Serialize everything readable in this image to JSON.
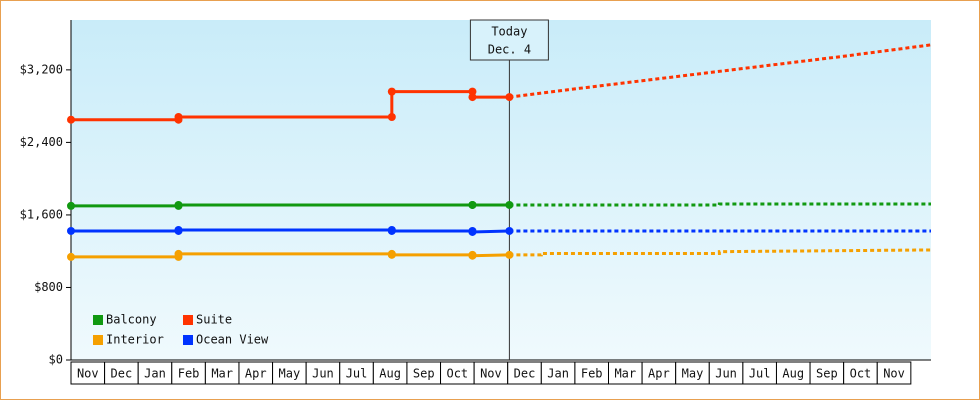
{
  "chart_data": {
    "type": "line",
    "categories": [
      "Nov",
      "Dec",
      "Jan",
      "Feb",
      "Mar",
      "Apr",
      "May",
      "Jun",
      "Jul",
      "Aug",
      "Sep",
      "Oct",
      "Nov",
      "Dec",
      "Jan",
      "Feb",
      "Mar",
      "Apr",
      "May",
      "Jun",
      "Jul",
      "Aug",
      "Sep",
      "Oct",
      "Nov"
    ],
    "xlim": [
      0,
      25.6
    ],
    "ylim": [
      0,
      3750
    ],
    "yticks": [
      {
        "value": 0,
        "label": "$0"
      },
      {
        "value": 800,
        "label": "$800"
      },
      {
        "value": 1600,
        "label": "$1,600"
      },
      {
        "value": 2400,
        "label": "$2,400"
      },
      {
        "value": 3200,
        "label": "$3,200"
      }
    ],
    "today": {
      "x": 13.05,
      "lines": [
        "Today",
        "Dec. 4"
      ]
    },
    "series": [
      {
        "name": "Balcony",
        "color": "#119911",
        "x": [
          0,
          3.2,
          3.2,
          11.95,
          11.95,
          13.05
        ],
        "values": [
          1700,
          1700,
          1710,
          1710,
          1710,
          1710
        ],
        "projection": {
          "x": [
            13.05,
            19.3,
            19.3,
            25.6
          ],
          "values": [
            1710,
            1710,
            1721,
            1721
          ]
        }
      },
      {
        "name": "Suite",
        "color": "#ff3300",
        "x": [
          0,
          3.2,
          3.2,
          9.55,
          9.55,
          11.95,
          11.95,
          13.05
        ],
        "values": [
          2650,
          2650,
          2680,
          2680,
          2960,
          2960,
          2900,
          2900
        ],
        "projection": {
          "x": [
            13.05,
            15,
            17,
            19,
            21,
            23,
            25.6
          ],
          "values": [
            2900,
            2990,
            3080,
            3170,
            3260,
            3350,
            3476
          ]
        }
      },
      {
        "name": "Interior",
        "color": "#f5a000",
        "x": [
          0,
          3.2,
          3.2,
          9.55,
          9.55,
          11.95,
          11.95,
          13.05
        ],
        "values": [
          1137,
          1137,
          1170,
          1170,
          1160,
          1160,
          1150,
          1159
        ],
        "projection": {
          "x": [
            13.05,
            14,
            14,
            19.3,
            19.3,
            25.6
          ],
          "values": [
            1159,
            1159,
            1175,
            1175,
            1195,
            1214
          ]
        }
      },
      {
        "name": "Ocean View",
        "color": "#0033ff",
        "x": [
          0,
          3.2,
          3.2,
          9.55,
          9.55,
          11.95,
          11.95,
          13.05
        ],
        "values": [
          1423,
          1423,
          1434,
          1434,
          1423,
          1423,
          1412,
          1423
        ],
        "projection": {
          "x": [
            13.05,
            25.6
          ],
          "values": [
            1423,
            1423
          ]
        }
      }
    ]
  }
}
